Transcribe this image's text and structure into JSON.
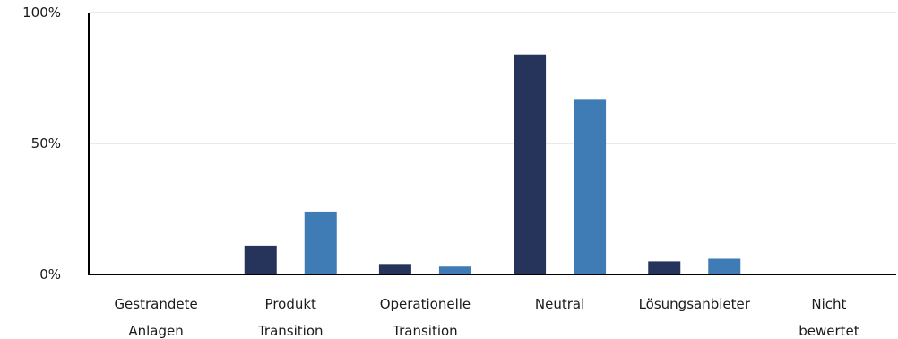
{
  "chart_data": {
    "type": "bar",
    "categories": [
      [
        "Gestrandete",
        "Anlagen"
      ],
      [
        "Produkt",
        "Transition"
      ],
      [
        "Operationelle",
        "Transition"
      ],
      [
        "Neutral"
      ],
      [
        "Lösungsanbieter"
      ],
      [
        "Nicht",
        "bewertet"
      ]
    ],
    "series": [
      {
        "values": [
          0,
          11,
          4,
          84,
          5,
          0
        ],
        "color": "#26345c"
      },
      {
        "values": [
          0,
          24,
          3,
          67,
          6,
          0
        ],
        "color": "#3f7bb5"
      }
    ],
    "ylim": [
      0,
      100
    ],
    "yticks": [
      "0%",
      "50%",
      "100%"
    ],
    "ytick_values": [
      0,
      50,
      100
    ],
    "grid": true,
    "title": "",
    "xlabel": "",
    "ylabel": ""
  }
}
